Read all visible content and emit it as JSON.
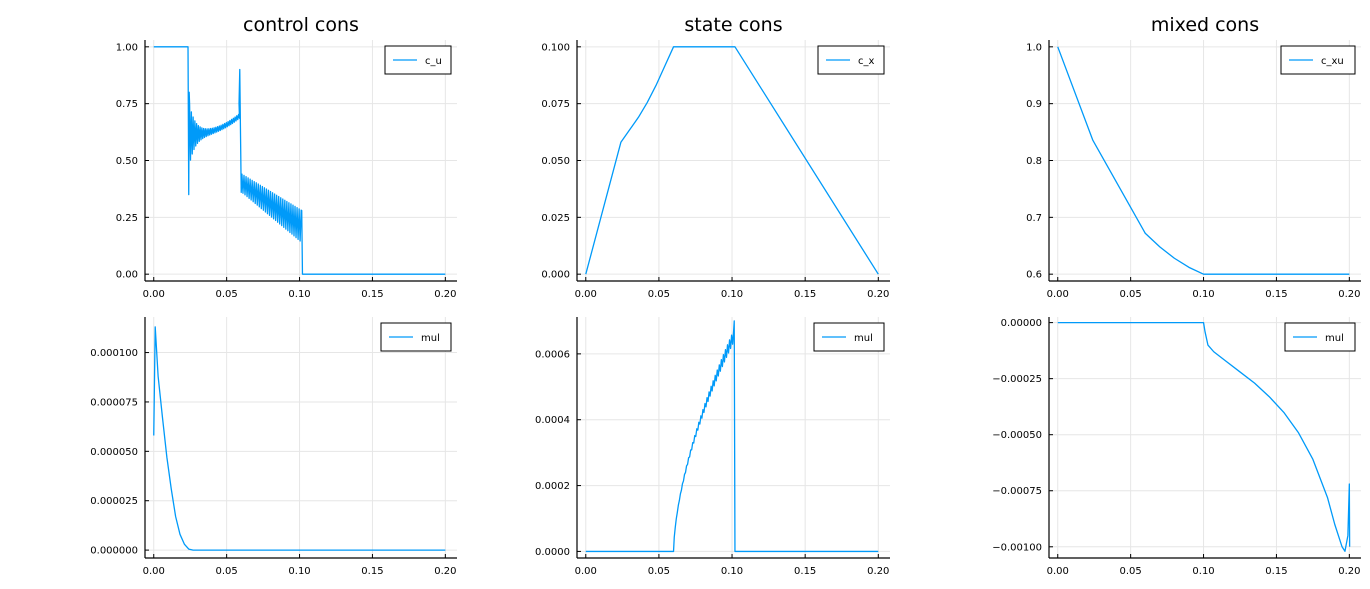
{
  "figure": {
    "background": "#ffffff",
    "series_color": "#009af9"
  },
  "chart_data": [
    {
      "id": "p1",
      "type": "line",
      "title": "control cons",
      "xlim": [
        -0.006,
        0.208
      ],
      "ylim": [
        -0.03,
        1.03
      ],
      "xticks": [
        0.0,
        0.05,
        0.1,
        0.15,
        0.2
      ],
      "xtick_labels": [
        "0.00",
        "0.05",
        "0.10",
        "0.15",
        "0.20"
      ],
      "yticks": [
        0.0,
        0.25,
        0.5,
        0.75,
        1.0
      ],
      "ytick_labels": [
        "0.00",
        "0.25",
        "0.50",
        "0.75",
        "1.00"
      ],
      "grid": true,
      "legend": "top-right",
      "series": [
        {
          "name": "c_u",
          "color": "#009af9",
          "x": [],
          "y": []
        }
      ]
    },
    {
      "id": "p2",
      "type": "line",
      "title": "state cons",
      "xlim": [
        -0.006,
        0.208
      ],
      "ylim": [
        -0.003,
        0.103
      ],
      "xticks": [
        0.0,
        0.05,
        0.1,
        0.15,
        0.2
      ],
      "xtick_labels": [
        "0.00",
        "0.05",
        "0.10",
        "0.15",
        "0.20"
      ],
      "yticks": [
        0.0,
        0.025,
        0.05,
        0.075,
        0.1
      ],
      "ytick_labels": [
        "0.000",
        "0.025",
        "0.050",
        "0.075",
        "0.100"
      ],
      "grid": true,
      "legend": "top-right",
      "series": [
        {
          "name": "c_x",
          "color": "#009af9",
          "x": [
            0.0,
            0.024,
            0.03,
            0.036,
            0.042,
            0.048,
            0.054,
            0.06,
            0.102,
            0.2
          ],
          "y": [
            0.0,
            0.058,
            0.0635,
            0.069,
            0.0755,
            0.083,
            0.0915,
            0.1,
            0.1,
            0.0
          ]
        }
      ]
    },
    {
      "id": "p3",
      "type": "line",
      "title": "mixed cons",
      "xlim": [
        -0.006,
        0.208
      ],
      "ylim": [
        0.588,
        1.012
      ],
      "xticks": [
        0.0,
        0.05,
        0.1,
        0.15,
        0.2
      ],
      "xtick_labels": [
        "0.00",
        "0.05",
        "0.10",
        "0.15",
        "0.20"
      ],
      "yticks": [
        0.6,
        0.7,
        0.8,
        0.9,
        1.0
      ],
      "ytick_labels": [
        "0.6",
        "0.7",
        "0.8",
        "0.9",
        "1.0"
      ],
      "grid": true,
      "legend": "top-right",
      "series": [
        {
          "name": "c_xu",
          "color": "#009af9",
          "x": [
            0.0,
            0.024,
            0.06,
            0.07,
            0.08,
            0.09,
            0.1,
            0.2
          ],
          "y": [
            1.0,
            0.836,
            0.672,
            0.648,
            0.628,
            0.612,
            0.6,
            0.6
          ]
        }
      ]
    },
    {
      "id": "p4",
      "type": "line",
      "title": "",
      "xlim": [
        -0.006,
        0.208
      ],
      "ylim": [
        -4e-06,
        0.000118
      ],
      "xticks": [
        0.0,
        0.05,
        0.1,
        0.15,
        0.2
      ],
      "xtick_labels": [
        "0.00",
        "0.05",
        "0.10",
        "0.15",
        "0.20"
      ],
      "yticks": [
        0.0,
        2.5e-05,
        5e-05,
        7.5e-05,
        0.0001
      ],
      "ytick_labels": [
        "0.000000",
        "0.000025",
        "0.000050",
        "0.000075",
        "0.000100"
      ],
      "grid": true,
      "legend": "top-right",
      "series": [
        {
          "name": "mul",
          "color": "#009af9",
          "x": [
            0.0,
            0.001,
            0.003,
            0.006,
            0.009,
            0.012,
            0.015,
            0.018,
            0.021,
            0.024,
            0.027,
            0.2
          ],
          "y": [
            5.8e-05,
            0.000113,
            8.8e-05,
            6.7e-05,
            4.7e-05,
            3.1e-05,
            1.7e-05,
            8e-06,
            3e-06,
            5e-07,
            0.0,
            0.0
          ]
        }
      ]
    },
    {
      "id": "p5",
      "type": "line",
      "title": "",
      "xlim": [
        -0.006,
        0.208
      ],
      "ylim": [
        -2e-05,
        0.000712
      ],
      "xticks": [
        0.0,
        0.05,
        0.1,
        0.15,
        0.2
      ],
      "xtick_labels": [
        "0.00",
        "0.05",
        "0.10",
        "0.15",
        "0.20"
      ],
      "yticks": [
        0.0,
        0.0002,
        0.0004,
        0.0006
      ],
      "ytick_labels": [
        "0.0000",
        "0.0002",
        "0.0004",
        "0.0006"
      ],
      "grid": true,
      "legend": "top-right",
      "series": [
        {
          "name": "mul",
          "color": "#009af9",
          "x": [],
          "y": []
        }
      ]
    },
    {
      "id": "p6",
      "type": "line",
      "title": "",
      "xlim": [
        -0.006,
        0.208
      ],
      "ylim": [
        -0.00105,
        2.5e-05
      ],
      "xticks": [
        0.0,
        0.05,
        0.1,
        0.15,
        0.2
      ],
      "xtick_labels": [
        "0.00",
        "0.05",
        "0.10",
        "0.15",
        "0.20"
      ],
      "yticks": [
        0.0,
        -0.00025,
        -0.0005,
        -0.00075,
        -0.001
      ],
      "ytick_labels": [
        "0.00000",
        "−0.00025",
        "−0.00050",
        "−0.00075",
        "−0.00100"
      ],
      "grid": true,
      "legend": "top-right",
      "series": [
        {
          "name": "mul",
          "color": "#009af9",
          "x": [
            0.0,
            0.1,
            0.101,
            0.103,
            0.107,
            0.115,
            0.125,
            0.135,
            0.145,
            0.155,
            0.165,
            0.175,
            0.185,
            0.19,
            0.195,
            0.197,
            0.199,
            0.2,
            0.2002
          ],
          "y": [
            0.0,
            0.0,
            -4e-05,
            -0.0001,
            -0.00013,
            -0.00017,
            -0.00022,
            -0.00027,
            -0.00033,
            -0.0004,
            -0.00049,
            -0.00061,
            -0.00078,
            -0.0009,
            -0.001,
            -0.00102,
            -0.00095,
            -0.00072,
            -0.001
          ]
        }
      ]
    }
  ]
}
